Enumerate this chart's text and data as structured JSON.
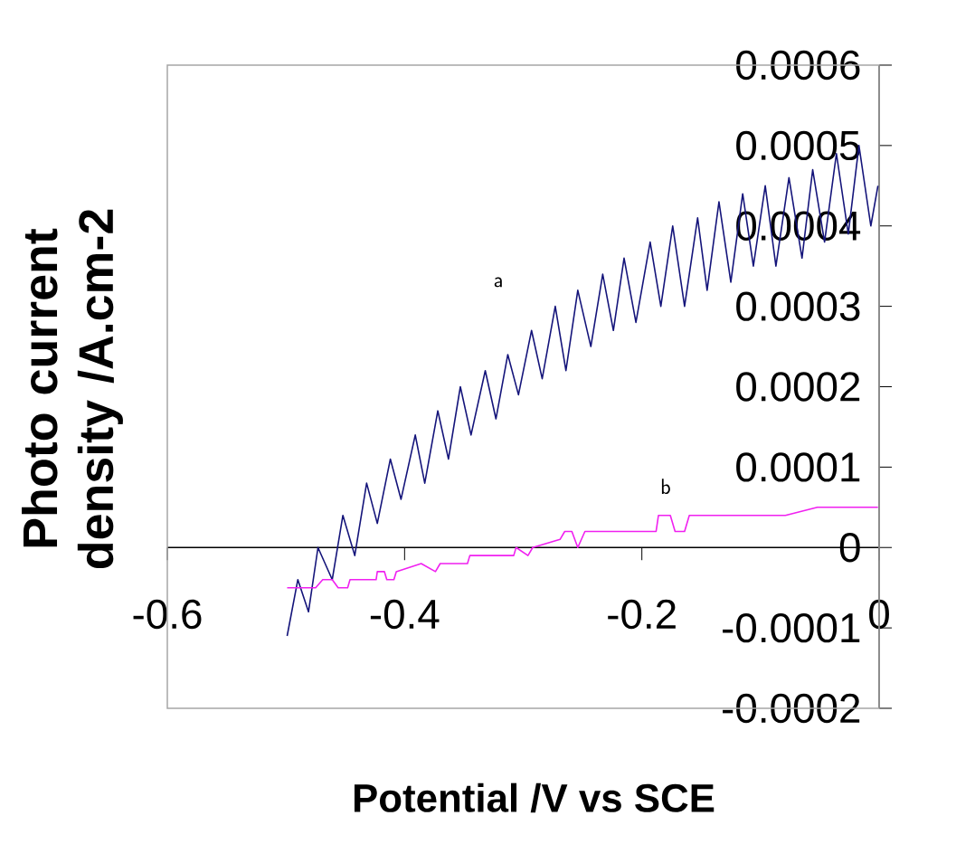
{
  "chart_data": {
    "type": "line",
    "xlabel": "Potential /V vs SCE",
    "ylabel": "Photo current density /A.cm-2",
    "xlim": [
      -0.6,
      0
    ],
    "ylim": [
      -0.0002,
      0.0006
    ],
    "xticks": [
      -0.6,
      -0.4,
      -0.2,
      0
    ],
    "yticks": [
      -0.0002,
      -0.0001,
      0,
      0.0001,
      0.0002,
      0.0003,
      0.0004,
      0.0005,
      0.0006
    ],
    "grid": false,
    "legend": false,
    "marker": "none",
    "line_style": "solid",
    "series": [
      {
        "name": "a",
        "color": "#14147a",
        "x": [
          -0.499,
          -0.49,
          -0.481,
          -0.473,
          -0.461,
          -0.452,
          -0.442,
          -0.432,
          -0.423,
          -0.412,
          -0.403,
          -0.391,
          -0.383,
          -0.372,
          -0.363,
          -0.353,
          -0.344,
          -0.332,
          -0.323,
          -0.313,
          -0.304,
          -0.293,
          -0.284,
          -0.273,
          -0.264,
          -0.254,
          -0.243,
          -0.233,
          -0.224,
          -0.215,
          -0.205,
          -0.193,
          -0.184,
          -0.174,
          -0.164,
          -0.153,
          -0.145,
          -0.135,
          -0.125,
          -0.115,
          -0.106,
          -0.096,
          -0.087,
          -0.076,
          -0.065,
          -0.056,
          -0.046,
          -0.036,
          -0.026,
          -0.017,
          -0.007,
          -0.001
        ],
        "values": [
          -0.00011,
          -4e-05,
          -8e-05,
          0.0,
          -4e-05,
          4e-05,
          -1e-05,
          8e-05,
          3e-05,
          0.00011,
          6e-05,
          0.00014,
          8e-05,
          0.00017,
          0.00011,
          0.0002,
          0.00014,
          0.00022,
          0.00016,
          0.00024,
          0.00019,
          0.00027,
          0.00021,
          0.0003,
          0.00022,
          0.00032,
          0.00025,
          0.00034,
          0.00027,
          0.00036,
          0.00028,
          0.00038,
          0.0003,
          0.0004,
          0.0003,
          0.00041,
          0.00032,
          0.00043,
          0.00033,
          0.00044,
          0.00035,
          0.00045,
          0.00035,
          0.00046,
          0.00036,
          0.00047,
          0.00038,
          0.00049,
          0.00039,
          0.0005,
          0.0004,
          0.00045
        ]
      },
      {
        "name": "b",
        "color": "#f020f0",
        "x": [
          -0.499,
          -0.475,
          -0.469,
          -0.461,
          -0.456,
          -0.448,
          -0.446,
          -0.424,
          -0.423,
          -0.417,
          -0.415,
          -0.409,
          -0.407,
          -0.386,
          -0.374,
          -0.37,
          -0.347,
          -0.345,
          -0.331,
          -0.308,
          -0.306,
          -0.296,
          -0.292,
          -0.269,
          -0.265,
          -0.259,
          -0.254,
          -0.248,
          -0.215,
          -0.213,
          -0.188,
          -0.186,
          -0.176,
          -0.172,
          -0.164,
          -0.16,
          -0.137,
          -0.135,
          -0.098,
          -0.079,
          -0.052,
          -0.05,
          -0.028,
          -0.001
        ],
        "values": [
          -5e-05,
          -5e-05,
          -4e-05,
          -4e-05,
          -5e-05,
          -5e-05,
          -4e-05,
          -4e-05,
          -3e-05,
          -3e-05,
          -4e-05,
          -4e-05,
          -3e-05,
          -2e-05,
          -3e-05,
          -2e-05,
          -2e-05,
          -1e-05,
          -1e-05,
          -1e-05,
          0.0,
          -1e-05,
          0.0,
          1e-05,
          2e-05,
          2e-05,
          0.0,
          2e-05,
          2e-05,
          2e-05,
          2e-05,
          4e-05,
          4e-05,
          2e-05,
          2e-05,
          4e-05,
          4e-05,
          4e-05,
          4e-05,
          4e-05,
          5e-05,
          5e-05,
          5e-05,
          5e-05
        ]
      }
    ]
  }
}
